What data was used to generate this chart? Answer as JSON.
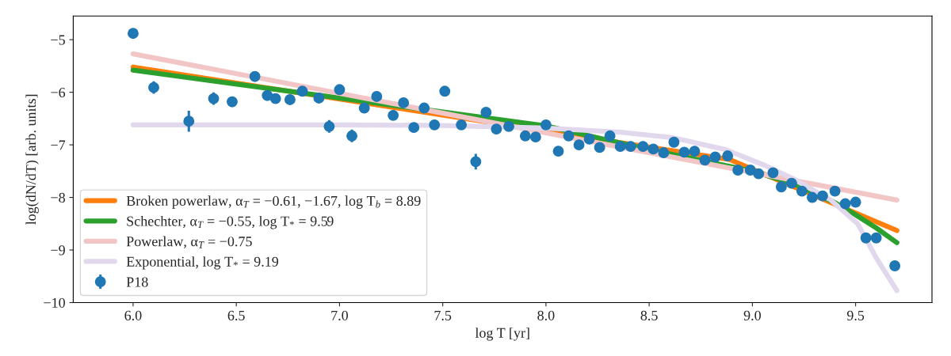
{
  "chart_data": {
    "type": "scatter",
    "xlabel": "log T [yr]",
    "ylabel": "log(dN/dT) [arb. units]",
    "xlim": [
      5.71,
      9.87
    ],
    "ylim": [
      -10,
      -4.55
    ],
    "xticks": [
      {
        "value": 6,
        "label": "6.0"
      },
      6.5,
      {
        "value": 7,
        "label": "7.0"
      },
      7.5,
      {
        "value": 8,
        "label": "8.0"
      },
      8.5,
      {
        "value": 9,
        "label": "9.0"
      },
      9.5
    ],
    "yticks": [
      {
        "value": -10,
        "label": "−10"
      },
      {
        "value": -9,
        "label": "−9"
      },
      {
        "value": -8,
        "label": "−8"
      },
      {
        "value": -7,
        "label": "−7"
      },
      {
        "value": -6,
        "label": "−6"
      },
      {
        "value": -5,
        "label": "−5"
      }
    ],
    "grid": false,
    "legend": "lower left",
    "series": [
      {
        "type": "line",
        "name": "Broken powerlaw, α$_{T}$ = −0.61, −1.67, log T$_{b}$ = 8.89",
        "color": "#ff7f0e",
        "x": [
          6.0,
          8.89,
          9.7
        ],
        "values": [
          -5.52,
          -7.28,
          -8.63
        ]
      },
      {
        "type": "line",
        "name": "Schechter, α$_{T}$ = −0.55, log T$_{*}$ = 9.59",
        "color": "#2ca02c",
        "x": [
          6.0,
          7.0,
          8.0,
          8.5,
          9.0,
          9.2,
          9.4,
          9.5,
          9.6,
          9.7
        ],
        "values": [
          -5.58,
          -6.11,
          -6.64,
          -7.09,
          -7.5,
          -7.74,
          -8.1,
          -8.33,
          -8.58,
          -8.86
        ]
      },
      {
        "type": "line",
        "name": "Powerlaw, α$_{T}$ = −0.75",
        "color": "#f2c6c6",
        "x": [
          6.0,
          9.7
        ],
        "values": [
          -5.27,
          -8.05
        ]
      },
      {
        "type": "line",
        "name": "Exponential, log T$_{*}$ = 9.19",
        "color": "#e2d8ee",
        "x": [
          6.0,
          7.0,
          7.5,
          8.0,
          8.36,
          8.61,
          8.87,
          9.06,
          9.2,
          9.38,
          9.51,
          9.6,
          9.7
        ],
        "values": [
          -6.62,
          -6.62,
          -6.63,
          -6.68,
          -6.76,
          -6.86,
          -7.09,
          -7.39,
          -7.65,
          -8.05,
          -8.5,
          -9.15,
          -9.77
        ]
      },
      {
        "name": "P18",
        "color": "#1f77b4",
        "marker": "circle",
        "x": [
          6.0,
          6.1,
          6.27,
          6.39,
          6.48,
          6.59,
          6.65,
          6.69,
          6.76,
          6.82,
          6.9,
          6.95,
          7.0,
          7.06,
          7.12,
          7.18,
          7.26,
          7.31,
          7.36,
          7.41,
          7.46,
          7.51,
          7.59,
          7.66,
          7.71,
          7.76,
          7.82,
          7.9,
          7.95,
          8.0,
          8.06,
          8.11,
          8.16,
          8.21,
          8.26,
          8.31,
          8.36,
          8.41,
          8.47,
          8.52,
          8.57,
          8.62,
          8.67,
          8.72,
          8.77,
          8.82,
          8.88,
          8.93,
          8.99,
          9.03,
          9.1,
          9.14,
          9.19,
          9.24,
          9.29,
          9.34,
          9.4,
          9.45,
          9.5,
          9.55,
          9.6,
          9.69
        ],
        "values": [
          -4.88,
          -5.91,
          -6.55,
          -6.12,
          -6.18,
          -5.7,
          -6.06,
          -6.12,
          -6.14,
          -5.98,
          -6.11,
          -6.65,
          -5.95,
          -6.83,
          -6.3,
          -6.08,
          -6.44,
          -6.2,
          -6.67,
          -6.3,
          -6.62,
          -5.98,
          -6.62,
          -7.32,
          -6.38,
          -6.7,
          -6.65,
          -6.83,
          -6.85,
          -6.62,
          -7.12,
          -6.83,
          -7.0,
          -6.89,
          -7.05,
          -6.83,
          -7.03,
          -7.03,
          -7.03,
          -7.08,
          -7.15,
          -6.95,
          -7.14,
          -7.12,
          -7.29,
          -7.23,
          -7.21,
          -7.48,
          -7.48,
          -7.55,
          -7.53,
          -7.8,
          -7.73,
          -7.88,
          -8.0,
          -7.97,
          -7.88,
          -8.12,
          -8.09,
          -8.77,
          -8.77,
          -9.3
        ],
        "errors": [
          null,
          0.12,
          0.2,
          0.12,
          0.1,
          null,
          0.1,
          null,
          null,
          null,
          null,
          0.12,
          null,
          0.12,
          null,
          null,
          null,
          null,
          null,
          null,
          null,
          null,
          null,
          0.15,
          null,
          null,
          null,
          null,
          null,
          null,
          null,
          null,
          null,
          null,
          null,
          null,
          null,
          null,
          null,
          null,
          null,
          null,
          null,
          null,
          null,
          null,
          null,
          null,
          null,
          null,
          null,
          null,
          null,
          null,
          null,
          null,
          null,
          null,
          null,
          0.08,
          0.08,
          null
        ]
      }
    ]
  }
}
